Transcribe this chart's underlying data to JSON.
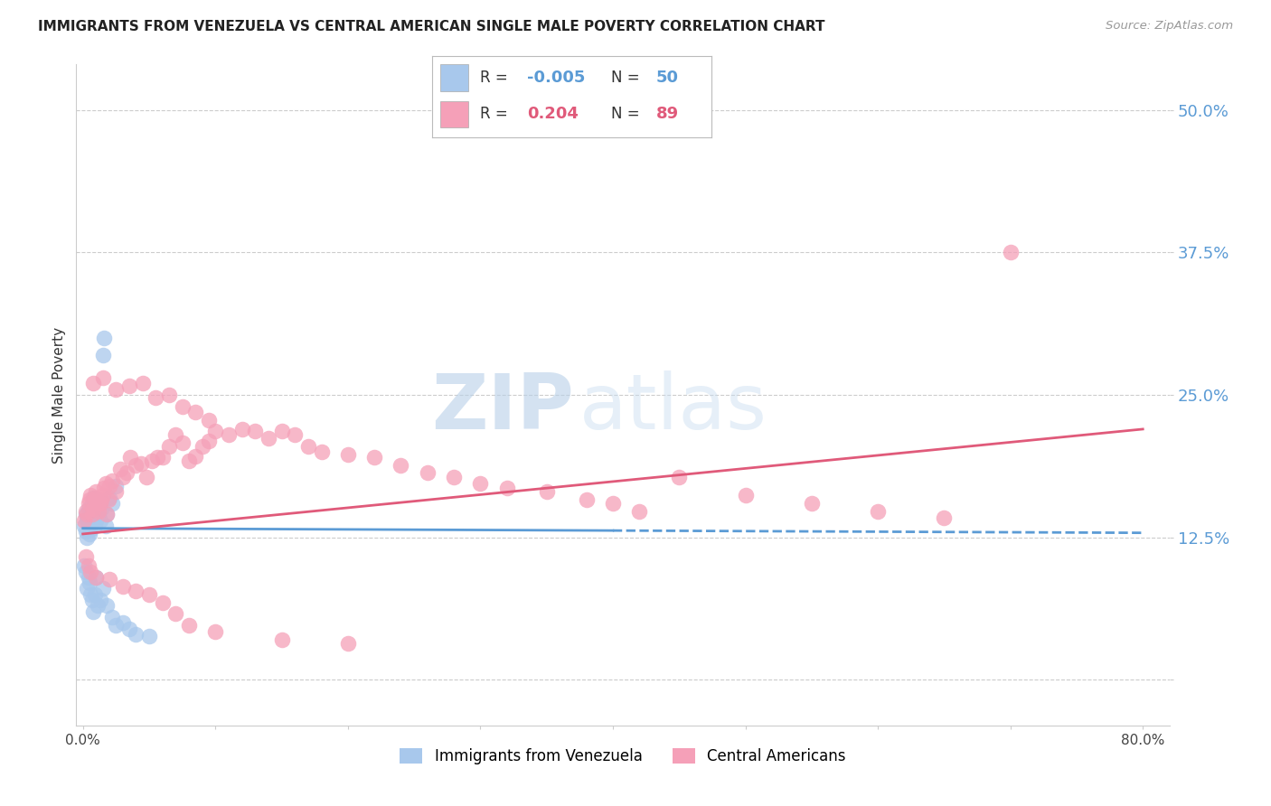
{
  "title": "IMMIGRANTS FROM VENEZUELA VS CENTRAL AMERICAN SINGLE MALE POVERTY CORRELATION CHART",
  "source": "Source: ZipAtlas.com",
  "ylabel": "Single Male Poverty",
  "xlim": [
    -0.005,
    0.82
  ],
  "ylim": [
    -0.04,
    0.54
  ],
  "yticks": [
    0.0,
    0.125,
    0.25,
    0.375,
    0.5
  ],
  "ytick_labels": [
    "",
    "12.5%",
    "25.0%",
    "37.5%",
    "50.0%"
  ],
  "xticks": [
    0.0,
    0.1,
    0.2,
    0.3,
    0.4,
    0.5,
    0.6,
    0.7,
    0.8
  ],
  "xtick_labels": [
    "0.0%",
    "",
    "",
    "",
    "",
    "",
    "",
    "",
    "80.0%"
  ],
  "series1_color": "#a8c8ec",
  "series2_color": "#f5a0b8",
  "series1_label": "Immigrants from Venezuela",
  "series2_label": "Central Americans",
  "series1_R": "-0.005",
  "series1_N": "50",
  "series2_R": "0.204",
  "series2_N": "89",
  "trend1_color": "#5b9bd5",
  "trend2_color": "#e05a7a",
  "trend1_x0": 0.0,
  "trend1_x1": 0.8,
  "trend1_y0": 0.133,
  "trend1_y1": 0.129,
  "trend2_x0": 0.0,
  "trend2_x1": 0.8,
  "trend2_y0": 0.128,
  "trend2_y1": 0.22,
  "watermark_zip": "ZIP",
  "watermark_atlas": "atlas",
  "background_color": "#ffffff",
  "grid_color": "#cccccc",
  "tick_label_color": "#5b9bd5",
  "title_color": "#222222",
  "venezuela_x": [
    0.001,
    0.002,
    0.002,
    0.003,
    0.003,
    0.004,
    0.004,
    0.005,
    0.005,
    0.006,
    0.006,
    0.007,
    0.007,
    0.008,
    0.008,
    0.009,
    0.01,
    0.01,
    0.011,
    0.012,
    0.012,
    0.013,
    0.014,
    0.015,
    0.016,
    0.017,
    0.018,
    0.02,
    0.022,
    0.025,
    0.001,
    0.002,
    0.003,
    0.004,
    0.005,
    0.006,
    0.007,
    0.008,
    0.009,
    0.01,
    0.011,
    0.013,
    0.015,
    0.018,
    0.022,
    0.025,
    0.03,
    0.035,
    0.04,
    0.05
  ],
  "venezuela_y": [
    0.135,
    0.145,
    0.13,
    0.14,
    0.125,
    0.15,
    0.138,
    0.142,
    0.128,
    0.148,
    0.132,
    0.138,
    0.155,
    0.145,
    0.16,
    0.135,
    0.14,
    0.158,
    0.148,
    0.145,
    0.155,
    0.14,
    0.15,
    0.285,
    0.3,
    0.135,
    0.145,
    0.16,
    0.155,
    0.17,
    0.1,
    0.095,
    0.08,
    0.09,
    0.085,
    0.075,
    0.07,
    0.06,
    0.075,
    0.09,
    0.065,
    0.07,
    0.08,
    0.065,
    0.055,
    0.048,
    0.05,
    0.045,
    0.04,
    0.038
  ],
  "central_x": [
    0.001,
    0.002,
    0.003,
    0.004,
    0.005,
    0.006,
    0.007,
    0.008,
    0.009,
    0.01,
    0.011,
    0.012,
    0.013,
    0.014,
    0.015,
    0.016,
    0.017,
    0.018,
    0.019,
    0.02,
    0.022,
    0.025,
    0.028,
    0.03,
    0.033,
    0.036,
    0.04,
    0.044,
    0.048,
    0.052,
    0.056,
    0.06,
    0.065,
    0.07,
    0.075,
    0.08,
    0.085,
    0.09,
    0.095,
    0.1,
    0.11,
    0.12,
    0.13,
    0.14,
    0.15,
    0.16,
    0.17,
    0.18,
    0.2,
    0.22,
    0.24,
    0.26,
    0.28,
    0.3,
    0.32,
    0.35,
    0.38,
    0.4,
    0.42,
    0.45,
    0.5,
    0.55,
    0.6,
    0.65,
    0.7,
    0.008,
    0.015,
    0.025,
    0.035,
    0.045,
    0.055,
    0.065,
    0.075,
    0.085,
    0.095,
    0.002,
    0.004,
    0.006,
    0.01,
    0.02,
    0.03,
    0.04,
    0.05,
    0.06,
    0.07,
    0.08,
    0.1,
    0.15,
    0.2
  ],
  "central_y": [
    0.14,
    0.148,
    0.145,
    0.155,
    0.158,
    0.162,
    0.145,
    0.15,
    0.16,
    0.165,
    0.155,
    0.148,
    0.155,
    0.158,
    0.162,
    0.168,
    0.172,
    0.145,
    0.158,
    0.17,
    0.175,
    0.165,
    0.185,
    0.178,
    0.182,
    0.195,
    0.188,
    0.19,
    0.178,
    0.192,
    0.195,
    0.195,
    0.205,
    0.215,
    0.208,
    0.192,
    0.196,
    0.205,
    0.21,
    0.218,
    0.215,
    0.22,
    0.218,
    0.212,
    0.218,
    0.215,
    0.205,
    0.2,
    0.198,
    0.195,
    0.188,
    0.182,
    0.178,
    0.172,
    0.168,
    0.165,
    0.158,
    0.155,
    0.148,
    0.178,
    0.162,
    0.155,
    0.148,
    0.142,
    0.375,
    0.26,
    0.265,
    0.255,
    0.258,
    0.26,
    0.248,
    0.25,
    0.24,
    0.235,
    0.228,
    0.108,
    0.1,
    0.095,
    0.09,
    0.088,
    0.082,
    0.078,
    0.075,
    0.068,
    0.058,
    0.048,
    0.042,
    0.035,
    0.032
  ]
}
